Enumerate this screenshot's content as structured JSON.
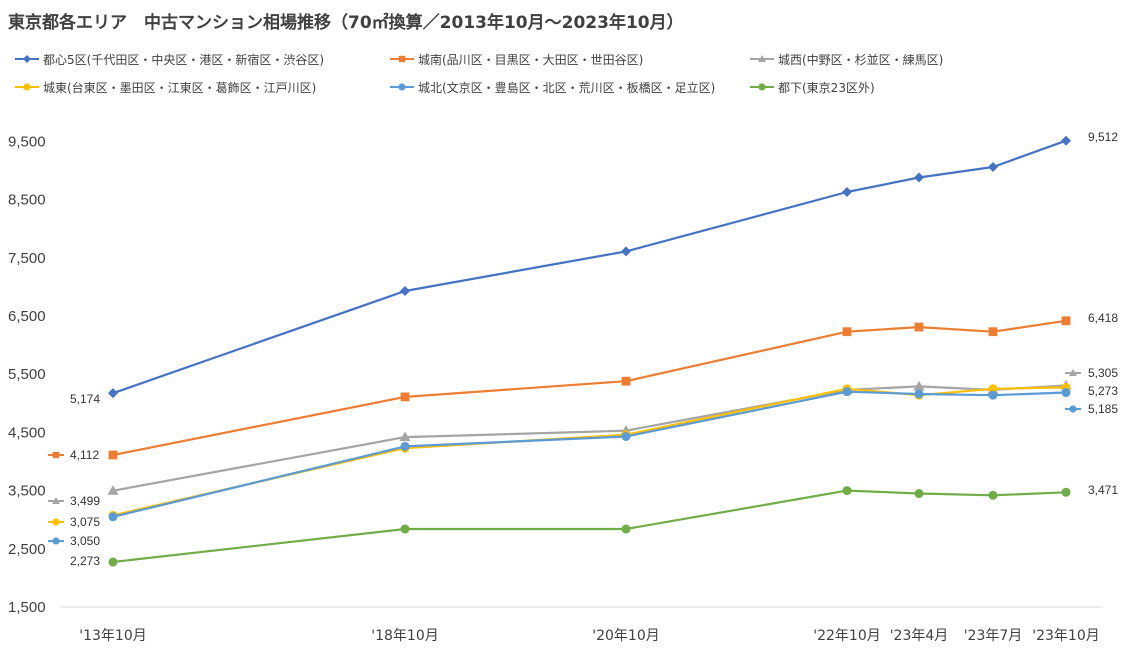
{
  "chart_data": {
    "type": "line",
    "title": "東京都各エリア　中古マンション相場推移（70㎡換算／2013年10月～2023年10月）",
    "categories": [
      "'13年10月",
      "'18年10月",
      "'20年10月",
      "'22年10月",
      "'23年4月",
      "'23年7月",
      "'23年10月"
    ],
    "y_ticks": [
      "1,500",
      "2,500",
      "3,500",
      "4,500",
      "5,500",
      "6,500",
      "7,500",
      "8,500",
      "9,500"
    ],
    "ylim": [
      1500,
      10000
    ],
    "grid": false,
    "legend_position": "top",
    "series": [
      {
        "name": "都心5区(千代田区・中央区・港区・新宿区・渋谷区)",
        "color": "#4472C4",
        "marker": "diamond",
        "values": [
          5174,
          6930,
          7610,
          8630,
          8880,
          9060,
          9512
        ],
        "labels": {
          "start": "5,174",
          "end": "9,512"
        }
      },
      {
        "name": "城南(品川区・目黒区・大田区・世田谷区)",
        "color": "#ED7D31",
        "marker": "square",
        "values": [
          4112,
          5110,
          5380,
          6230,
          6310,
          6230,
          6418
        ],
        "labels": {
          "start": "4,112",
          "end": "6,418"
        }
      },
      {
        "name": "城西(中野区・杉並区・練馬区)",
        "color": "#A5A5A5",
        "marker": "triangle",
        "values": [
          3499,
          4420,
          4530,
          5230,
          5290,
          5230,
          5305
        ],
        "labels": {
          "start": "3,499",
          "end": "5,305"
        }
      },
      {
        "name": "城東(台東区・墨田区・江東区・葛飾区・江戸川区)",
        "color": "#FFC000",
        "marker": "circle",
        "values": [
          3075,
          4230,
          4460,
          5250,
          5140,
          5250,
          5273
        ],
        "labels": {
          "start": "3,075",
          "end": "5,273"
        }
      },
      {
        "name": "城北(文京区・豊島区・北区・荒川区・板橋区・足立区)",
        "color": "#5B9BD5",
        "marker": "circle",
        "values": [
          3050,
          4260,
          4430,
          5200,
          5160,
          5140,
          5185
        ],
        "labels": {
          "start": "3,050",
          "end": "5,185"
        }
      },
      {
        "name": "都下(東京23区外)",
        "color": "#70AD47",
        "marker": "circle",
        "values": [
          2273,
          2840,
          2840,
          3500,
          3450,
          3420,
          3471
        ],
        "labels": {
          "start": "2,273",
          "end": "3,471"
        }
      }
    ]
  }
}
